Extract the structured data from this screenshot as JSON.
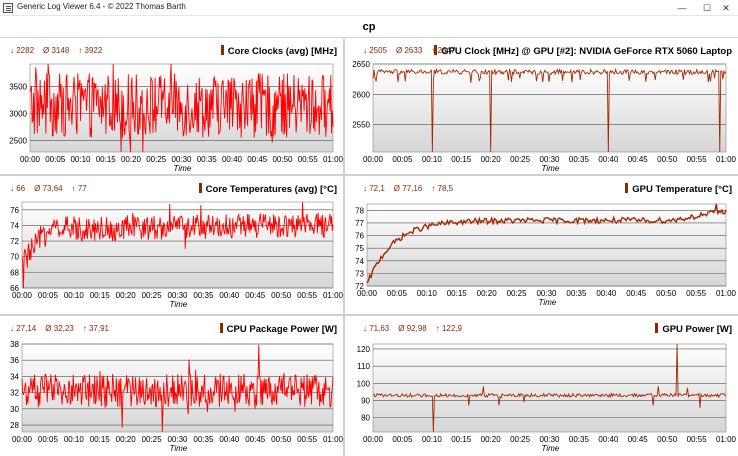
{
  "window": {
    "title": "Generic Log Viewer 6.4 - © 2022 Thomas Barth",
    "minimize_glyph": "—",
    "maximize_glyph": "☐",
    "close_glyph": "✕",
    "app_icon": "document-icon"
  },
  "page_title": "cp",
  "x_axis_label": "Time",
  "x_ticks": [
    "00:00",
    "00:05",
    "00:10",
    "00:15",
    "00:20",
    "00:25",
    "00:30",
    "00:35",
    "00:40",
    "00:45",
    "00:50",
    "00:55",
    "01:00"
  ],
  "colors": {
    "line": "#ff0000",
    "line_dark": "#a52a00",
    "stats": "#8b2a00",
    "plot_top": "#ffffff",
    "plot_bottom": "#d6d6d6"
  },
  "chart_data": [
    {
      "id": "core-clocks",
      "type": "line",
      "title": "Core Clocks (avg) [MHz]",
      "stats": {
        "min": "↓ 2282",
        "avg": "Ø 3148",
        "max": "↑ 3922"
      },
      "xlabel": "Time",
      "x_range_min": [
        0,
        60
      ],
      "ylim": [
        2282,
        3922
      ],
      "yticks": [
        2500,
        3000,
        3500
      ],
      "series": [
        {
          "mean": 3148,
          "min": 2282,
          "max": 3922,
          "noise": "high"
        }
      ]
    },
    {
      "id": "gpu-clock",
      "type": "line",
      "title": "GPU Clock [MHz] @ GPU [#2]: NVIDIA GeForce RTX 5060 Laptop",
      "stats": {
        "min": "↓ 2505",
        "avg": "Ø 2633",
        "max": "↑ 2647"
      },
      "xlabel": "Time",
      "x_range_min": [
        0,
        60
      ],
      "ylim": [
        2505,
        2650
      ],
      "yticks": [
        2550,
        2600,
        2650
      ],
      "series": [
        {
          "mean": 2637,
          "min": 2505,
          "max": 2647,
          "dips_at_min": [
            10,
            20,
            40,
            59
          ]
        }
      ]
    },
    {
      "id": "core-temp",
      "type": "line",
      "title": "Core Temperatures (avg) [°C]",
      "stats": {
        "min": "↓ 66",
        "avg": "Ø 73,64",
        "max": "↑ 77"
      },
      "xlabel": "Time",
      "x_range_min": [
        0,
        60
      ],
      "ylim": [
        66,
        77
      ],
      "yticks": [
        66,
        68,
        70,
        72,
        74,
        76
      ],
      "series": [
        {
          "start": 69,
          "mean": 73.64,
          "min": 66,
          "max": 77
        }
      ]
    },
    {
      "id": "gpu-temp",
      "type": "line",
      "title": "GPU Temperature [°C]",
      "stats": {
        "min": "↓ 72,1",
        "avg": "Ø 77,16",
        "max": "↑ 78,5"
      },
      "xlabel": "Time",
      "x_range_min": [
        0,
        60
      ],
      "ylim": [
        72,
        78.5
      ],
      "yticks": [
        72,
        73,
        74,
        75,
        76,
        77,
        78
      ],
      "series": [
        {
          "start": 72.1,
          "mean": 77.16,
          "end": 78.1,
          "max": 78.5
        }
      ]
    },
    {
      "id": "cpu-power",
      "type": "line",
      "title": "CPU Package Power [W]",
      "stats": {
        "min": "↓ 27,14",
        "avg": "Ø 32,23",
        "max": "↑ 37,91"
      },
      "xlabel": "Time",
      "x_range_min": [
        0,
        60
      ],
      "ylim": [
        27.14,
        38
      ],
      "yticks": [
        28,
        30,
        32,
        34,
        36,
        38
      ],
      "series": [
        {
          "mean": 32.23,
          "min": 27.14,
          "max": 37.91
        }
      ]
    },
    {
      "id": "gpu-power",
      "type": "line",
      "title": "GPU Power [W]",
      "stats": {
        "min": "↓ 71,63",
        "avg": "Ø 92,98",
        "max": "↑ 122,9"
      },
      "xlabel": "Time",
      "x_range_min": [
        0,
        60
      ],
      "ylim": [
        71.63,
        122.9
      ],
      "yticks": [
        80,
        90,
        100,
        110,
        120
      ],
      "series": [
        {
          "mean": 92.98,
          "min": 71.63,
          "max": 122.9
        }
      ]
    }
  ]
}
